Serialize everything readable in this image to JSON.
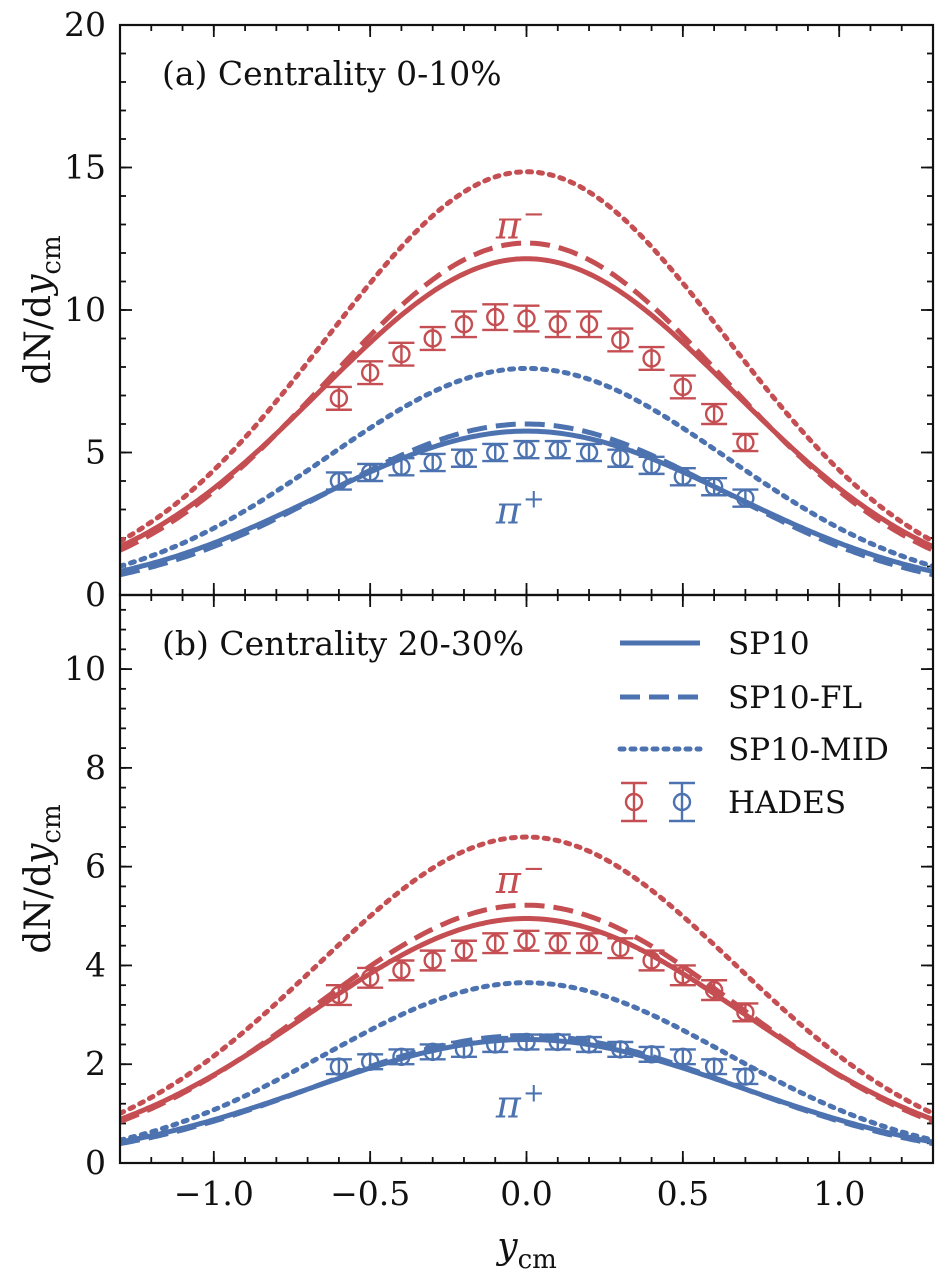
{
  "chart_data": {
    "type": "line",
    "colors": {
      "pi_minus": "#c44e52",
      "pi_plus": "#4c72b0"
    },
    "x_axis": {
      "label_main": "y",
      "label_sub": "cm",
      "xlim": [
        -1.3,
        1.3
      ],
      "ticks": [
        -1.0,
        -0.5,
        0.0,
        0.5,
        1.0
      ],
      "tick_labels": [
        "−1.0",
        "−0.5",
        "0.0",
        "0.5",
        "1.0"
      ]
    },
    "y_axis_label": {
      "prefix": "dN/d",
      "main": "y",
      "sub": "cm"
    },
    "legend": [
      {
        "label": "SP10",
        "style": "solid"
      },
      {
        "label": "SP10-FL",
        "style": "dashed"
      },
      {
        "label": "SP10-MID",
        "style": "dotted"
      },
      {
        "label": "HADES",
        "style": "markers"
      }
    ],
    "panels": [
      {
        "id": "a",
        "label": "(a) Centrality 0-10%",
        "ylim": [
          0,
          20
        ],
        "yticks": [
          0,
          5,
          10,
          15,
          20
        ],
        "ytick_labels": [
          "0",
          "5",
          "10",
          "15",
          "20"
        ],
        "annotations": [
          {
            "text": "π",
            "sup": "−",
            "species": "pi_minus",
            "x": -0.02,
            "y": 13.0
          },
          {
            "text": "π",
            "sup": "+",
            "species": "pi_plus",
            "x": -0.02,
            "y": 3.0
          }
        ],
        "models": {
          "pi_minus": {
            "SP10": {
              "peak": 11.8,
              "sigma": 0.66
            },
            "SP10-FL": {
              "peak": 12.35,
              "sigma": 0.64
            },
            "SP10-MID": {
              "peak": 14.85,
              "sigma": 0.64
            }
          },
          "pi_plus": {
            "SP10": {
              "peak": 5.75,
              "sigma": 0.66
            },
            "SP10-FL": {
              "peak": 6.0,
              "sigma": 0.63
            },
            "SP10-MID": {
              "peak": 7.95,
              "sigma": 0.64
            }
          }
        },
        "hades": {
          "x": [
            -0.6,
            -0.5,
            -0.4,
            -0.3,
            -0.2,
            -0.1,
            0.0,
            0.1,
            0.2,
            0.3,
            0.4,
            0.5,
            0.6,
            0.7
          ],
          "pi_minus": {
            "y": [
              6.9,
              7.8,
              8.45,
              9.0,
              9.5,
              9.75,
              9.7,
              9.5,
              9.5,
              8.95,
              8.3,
              7.3,
              6.35,
              5.35
            ],
            "err": [
              0.4,
              0.4,
              0.4,
              0.4,
              0.45,
              0.45,
              0.45,
              0.45,
              0.45,
              0.4,
              0.4,
              0.4,
              0.35,
              0.3
            ]
          },
          "pi_plus": {
            "y": [
              4.0,
              4.3,
              4.5,
              4.65,
              4.8,
              5.0,
              5.1,
              5.1,
              5.0,
              4.8,
              4.55,
              4.15,
              3.8,
              3.4
            ],
            "err": [
              0.3,
              0.3,
              0.3,
              0.3,
              0.3,
              0.3,
              0.3,
              0.3,
              0.3,
              0.3,
              0.3,
              0.3,
              0.3,
              0.3
            ]
          }
        }
      },
      {
        "id": "b",
        "label": "(b) Centrality 20-30%",
        "ylim": [
          0,
          11.5
        ],
        "yticks": [
          0,
          2,
          4,
          6,
          8,
          10
        ],
        "ytick_labels": [
          "0",
          "2",
          "4",
          "6",
          "8",
          "10"
        ],
        "annotations": [
          {
            "text": "π",
            "sup": "−",
            "species": "pi_minus",
            "x": -0.02,
            "y": 5.75
          },
          {
            "text": "π",
            "sup": "+",
            "species": "pi_plus",
            "x": -0.02,
            "y": 1.2
          }
        ],
        "models": {
          "pi_minus": {
            "SP10": {
              "peak": 4.95,
              "sigma": 0.7
            },
            "SP10-FL": {
              "peak": 5.22,
              "sigma": 0.68
            },
            "SP10-MID": {
              "peak": 6.6,
              "sigma": 0.67
            }
          },
          "pi_plus": {
            "SP10": {
              "peak": 2.5,
              "sigma": 0.69
            },
            "SP10-FL": {
              "peak": 2.58,
              "sigma": 0.67
            },
            "SP10-MID": {
              "peak": 3.65,
              "sigma": 0.64
            }
          }
        },
        "hades": {
          "x": [
            -0.6,
            -0.5,
            -0.4,
            -0.3,
            -0.2,
            -0.1,
            0.0,
            0.1,
            0.2,
            0.3,
            0.4,
            0.5,
            0.6,
            0.7
          ],
          "pi_minus": {
            "y": [
              3.4,
              3.75,
              3.9,
              4.1,
              4.3,
              4.45,
              4.5,
              4.45,
              4.45,
              4.35,
              4.1,
              3.8,
              3.5,
              3.05
            ],
            "err": [
              0.2,
              0.2,
              0.2,
              0.2,
              0.2,
              0.2,
              0.2,
              0.2,
              0.2,
              0.2,
              0.2,
              0.2,
              0.2,
              0.18
            ]
          },
          "pi_plus": {
            "y": [
              1.95,
              2.05,
              2.15,
              2.25,
              2.3,
              2.4,
              2.45,
              2.45,
              2.4,
              2.3,
              2.2,
              2.15,
              1.95,
              1.75
            ],
            "err": [
              0.15,
              0.15,
              0.15,
              0.15,
              0.15,
              0.15,
              0.15,
              0.15,
              0.15,
              0.15,
              0.15,
              0.15,
              0.15,
              0.15
            ]
          }
        }
      }
    ]
  }
}
